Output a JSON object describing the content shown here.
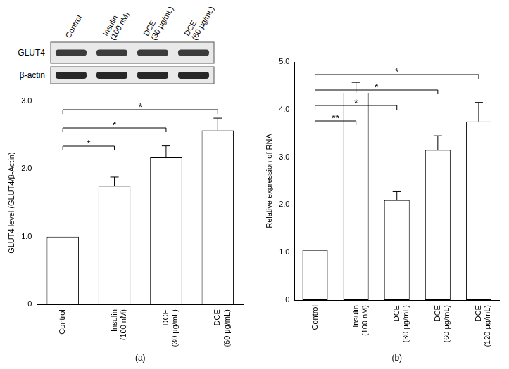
{
  "chart_data": [
    {
      "type": "bar",
      "categories": [
        "Control",
        "Insulin (100 nM)",
        "DCE (30 μg/mL)",
        "DCE (60 μg/mL)"
      ],
      "values": [
        1.0,
        1.75,
        2.17,
        2.57
      ],
      "errors": [
        null,
        0.13,
        0.17,
        0.18
      ],
      "color": "#ffffff",
      "y_label": "GLUT4 level (GLUT4/β-Actin)",
      "x_label": "(a)",
      "ylim": [
        0,
        3
      ],
      "yticks": [
        0,
        {
          "value": 1,
          "label": "1.0"
        },
        {
          "value": 2,
          "label": "2.0"
        },
        {
          "value": 3,
          "label": "3.0"
        }
      ],
      "grid": false,
      "annotations": [
        {
          "from": "Control",
          "to": "Insulin (100 nM)",
          "label": "*"
        },
        {
          "from": "Control",
          "to": "DCE (30 μg/mL)",
          "label": "*"
        },
        {
          "from": "Control",
          "to": "DCE (60 μg/mL)",
          "label": "*"
        }
      ]
    },
    {
      "type": "bar",
      "categories": [
        "Control",
        "Insulin (100 nM)",
        "DCE (30 μg/mL)",
        "DCE (60 μg/mL)",
        "DCE (120 μg/mL)"
      ],
      "values": [
        1.05,
        4.35,
        2.1,
        3.15,
        3.75
      ],
      "errors": [
        null,
        0.22,
        0.18,
        0.3,
        0.4
      ],
      "color": "#ffffff",
      "y_label": "Relative expression of RNA",
      "x_label": "(b)",
      "ylim": [
        0,
        5
      ],
      "yticks": [
        0,
        {
          "value": 1,
          "label": "1.0"
        },
        {
          "value": 2,
          "label": "2.0"
        },
        {
          "value": 3,
          "label": "3.0"
        },
        {
          "value": 4,
          "label": "4.0"
        },
        {
          "value": 5,
          "label": "5.0"
        }
      ],
      "grid": false,
      "annotations": [
        {
          "from": "Control",
          "to": "Insulin (100 nM)",
          "label": "**"
        },
        {
          "from": "Control",
          "to": "DCE (30 μg/mL)",
          "label": "*"
        },
        {
          "from": "Control",
          "to": "DCE (60 μg/mL)",
          "label": "*"
        },
        {
          "from": "Control",
          "to": "DCE (120 μg/mL)",
          "label": "*"
        }
      ]
    }
  ],
  "blot": {
    "lanes": [
      "Control",
      "Insulin (100 nM)",
      "DCE (30 μg/mL)",
      "DCE (60 μg/mL)"
    ],
    "rows": [
      "GLUT4",
      "β-actin"
    ]
  }
}
